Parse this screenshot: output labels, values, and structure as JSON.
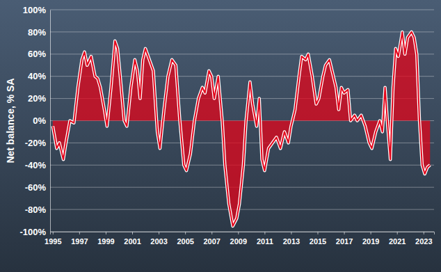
{
  "chart_data": {
    "type": "area",
    "y_label": "Net balance, % SA",
    "x": [
      1995.0,
      1995.3,
      1995.5,
      1995.8,
      1996.0,
      1996.3,
      1996.6,
      1996.9,
      1997.2,
      1997.4,
      1997.6,
      1997.9,
      1998.2,
      1998.4,
      1998.6,
      1998.9,
      1999.1,
      1999.4,
      1999.7,
      1999.9,
      2000.1,
      2000.4,
      2000.6,
      2000.9,
      2001.2,
      2001.4,
      2001.6,
      2001.8,
      2002.0,
      2002.3,
      2002.6,
      2002.9,
      2003.1,
      2003.4,
      2003.7,
      2004.0,
      2004.3,
      2004.6,
      2004.9,
      2005.1,
      2005.4,
      2005.7,
      2006.0,
      2006.3,
      2006.5,
      2006.8,
      2007.0,
      2007.2,
      2007.5,
      2007.8,
      2008.0,
      2008.3,
      2008.6,
      2008.9,
      2009.1,
      2009.4,
      2009.6,
      2009.9,
      2010.1,
      2010.4,
      2010.6,
      2010.8,
      2011.0,
      2011.3,
      2011.6,
      2011.9,
      2012.2,
      2012.5,
      2012.8,
      2013.0,
      2013.3,
      2013.6,
      2013.8,
      2014.1,
      2014.3,
      2014.6,
      2014.9,
      2015.1,
      2015.4,
      2015.6,
      2015.9,
      2016.1,
      2016.4,
      2016.6,
      2016.8,
      2017.0,
      2017.3,
      2017.5,
      2017.8,
      2018.0,
      2018.3,
      2018.6,
      2018.9,
      2019.1,
      2019.4,
      2019.7,
      2019.9,
      2020.1,
      2020.3,
      2020.5,
      2020.7,
      2020.9,
      2021.1,
      2021.4,
      2021.6,
      2021.8,
      2022.1,
      2022.3,
      2022.5,
      2022.7,
      2022.9,
      2023.1,
      2023.3,
      2023.5
    ],
    "values": [
      -5,
      -25,
      -20,
      -35,
      -20,
      0,
      -2,
      30,
      55,
      62,
      50,
      58,
      40,
      38,
      30,
      10,
      -5,
      30,
      72,
      65,
      40,
      0,
      -5,
      30,
      55,
      45,
      20,
      55,
      65,
      55,
      45,
      -10,
      -25,
      10,
      40,
      55,
      50,
      0,
      -40,
      -45,
      -30,
      0,
      20,
      30,
      25,
      45,
      40,
      20,
      40,
      0,
      -40,
      -75,
      -95,
      -88,
      -75,
      -40,
      0,
      35,
      15,
      -5,
      20,
      -35,
      -45,
      -25,
      -20,
      -15,
      -25,
      -10,
      -20,
      -5,
      10,
      40,
      58,
      55,
      60,
      40,
      15,
      20,
      40,
      50,
      55,
      45,
      30,
      10,
      30,
      25,
      28,
      0,
      5,
      0,
      5,
      -5,
      -20,
      -25,
      -10,
      0,
      -10,
      30,
      -5,
      -35,
      30,
      65,
      58,
      80,
      60,
      75,
      80,
      75,
      60,
      0,
      -40,
      -48,
      -42,
      -40
    ],
    "color": "#e3051b",
    "xlim": [
      1994.8,
      2023.8
    ],
    "xticks": [
      1995,
      1997,
      1999,
      2001,
      2003,
      2005,
      2007,
      2009,
      2011,
      2013,
      2015,
      2017,
      2019,
      2021,
      2023
    ],
    "ylim": [
      -100,
      100
    ],
    "yticks": [
      {
        "value": -100,
        "label": "-100%"
      },
      {
        "value": -80,
        "label": "-80%"
      },
      {
        "value": -60,
        "label": "-60%"
      },
      {
        "value": -40,
        "label": "-40%"
      },
      {
        "value": -20,
        "label": "-20%"
      },
      {
        "value": 0,
        "label": "0%"
      },
      {
        "value": 20,
        "label": "20%"
      },
      {
        "value": 40,
        "label": "40%"
      },
      {
        "value": 60,
        "label": "60%"
      },
      {
        "value": 80,
        "label": "80%"
      },
      {
        "value": 100,
        "label": "100%"
      }
    ],
    "grid": true
  }
}
